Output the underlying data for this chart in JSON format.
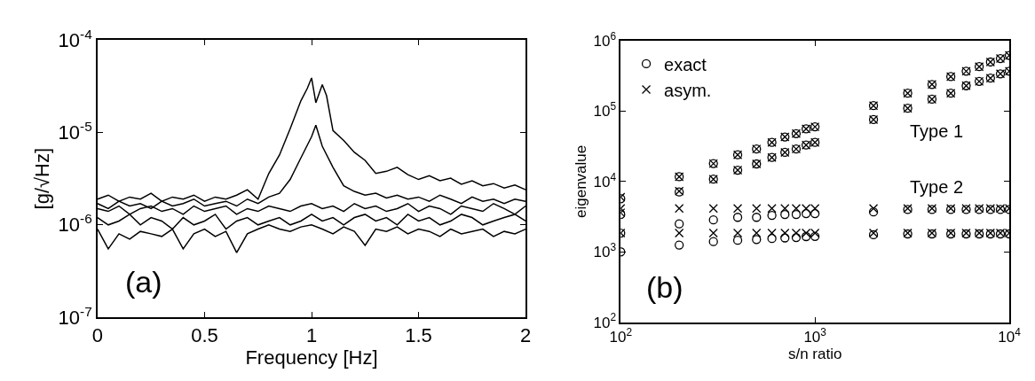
{
  "chart_data": [
    {
      "type": "line",
      "xlabel": "Frequency [Hz]",
      "ylabel": "[g/√Hz]",
      "log": "y",
      "legend": false,
      "marker": "none",
      "line_style": "solid",
      "annotations": [
        "(a)"
      ],
      "xlim": [
        0,
        2
      ],
      "xticks": [
        0,
        0.5,
        1,
        1.5,
        2
      ],
      "ylim": [
        1e-07,
        0.0001
      ],
      "yticks": [
        {
          "value": 1e-07,
          "label": "10$^{-7}$"
        },
        {
          "value": 1e-06,
          "label": "10$^{-6}$"
        },
        {
          "value": 1e-05,
          "label": "10$^{-5}$"
        },
        {
          "value": 0.0001,
          "label": "10$^{-4}$"
        }
      ],
      "x": [
        0,
        0.05,
        0.1,
        0.15,
        0.2,
        0.25,
        0.3,
        0.35,
        0.4,
        0.45,
        0.5,
        0.55,
        0.6,
        0.65,
        0.7,
        0.75,
        0.8,
        0.85,
        0.9,
        0.95,
        1.0,
        1.05,
        1.1,
        1.15,
        1.2,
        1.25,
        1.3,
        1.35,
        1.4,
        1.45,
        1.5,
        1.55,
        1.6,
        1.65,
        1.7,
        1.75,
        1.8,
        1.85,
        1.9,
        1.95,
        2.0
      ],
      "series": [
        {
          "color": "#000000",
          "x": [
            0,
            0.05,
            0.1,
            0.15,
            0.2,
            0.25,
            0.3,
            0.35,
            0.4,
            0.45,
            0.5,
            0.55,
            0.6,
            0.65,
            0.7,
            0.75,
            0.8,
            0.85,
            0.9,
            0.95,
            0.98,
            1.0,
            1.02,
            1.05,
            1.07,
            1.1,
            1.15,
            1.2,
            1.25,
            1.3,
            1.35,
            1.4,
            1.45,
            1.5,
            1.55,
            1.6,
            1.65,
            1.7,
            1.75,
            1.8,
            1.85,
            1.9,
            1.95,
            2.0
          ],
          "values": [
            1.9e-06,
            2.1e-06,
            1.8e-06,
            2e-06,
            1.9e-06,
            2.2e-06,
            1.8e-06,
            2e-06,
            1.9e-06,
            2.1e-06,
            1.8e-06,
            2e-06,
            1.9e-06,
            2.1e-06,
            2.4e-06,
            1.9e-06,
            3.6e-06,
            5.7e-06,
            1.1e-05,
            2.2e-05,
            3e-05,
            3.9e-05,
            2.1e-05,
            3.3e-05,
            2.5e-05,
            1.05e-05,
            8.2e-06,
            6.1e-06,
            5e-06,
            3.6e-06,
            3.8e-06,
            4.2e-06,
            3.5e-06,
            3.1e-06,
            3.4e-06,
            3e-06,
            3.2e-06,
            2.75e-06,
            3e-06,
            2.65e-06,
            2.8e-06,
            2.5e-06,
            2.7e-06,
            2.4e-06
          ]
        },
        {
          "color": "#000000",
          "x": [
            0,
            0.05,
            0.1,
            0.15,
            0.2,
            0.25,
            0.3,
            0.35,
            0.4,
            0.45,
            0.5,
            0.55,
            0.6,
            0.65,
            0.7,
            0.75,
            0.8,
            0.85,
            0.9,
            0.95,
            1.0,
            1.02,
            1.05,
            1.1,
            1.15,
            1.2,
            1.25,
            1.3,
            1.35,
            1.4,
            1.45,
            1.5,
            1.55,
            1.6,
            1.65,
            1.7,
            1.75,
            1.8,
            1.85,
            1.9,
            1.95,
            2.0
          ],
          "values": [
            1.7e-06,
            1.5e-06,
            1.8e-06,
            1.6e-06,
            1.7e-06,
            1.5e-06,
            1.8e-06,
            1.6e-06,
            1.7e-06,
            1.9e-06,
            1.6e-06,
            1.7e-06,
            1.8e-06,
            1.6e-06,
            1.9e-06,
            1.7e-06,
            2e-06,
            2.2e-06,
            3.1e-06,
            5.3e-06,
            9e-06,
            1.2e-05,
            7.1e-06,
            4.2e-06,
            2.65e-06,
            2.3e-06,
            2.1e-06,
            2.2e-06,
            1.95e-06,
            2.1e-06,
            1.9e-06,
            2e-06,
            1.8e-06,
            2.1e-06,
            1.9e-06,
            1.7e-06,
            2e-06,
            1.8e-06,
            1.9e-06,
            1.7e-06,
            1.9e-06,
            1.8e-06
          ]
        },
        {
          "color": "#000000",
          "values": [
            1.5e-06,
            1.4e-06,
            1.6e-06,
            1.3e-06,
            1.5e-06,
            1.6e-06,
            1.4e-06,
            1.5e-06,
            1.3e-06,
            1.6e-06,
            1.4e-06,
            1.5e-06,
            1.6e-06,
            1.3e-06,
            1.5e-06,
            1.4e-06,
            1.6e-06,
            1.5e-06,
            1.4e-06,
            1.6e-06,
            1.7e-06,
            1.5e-06,
            1.6e-06,
            1.4e-06,
            1.7e-06,
            1.5e-06,
            1.6e-06,
            1.4e-06,
            1.5e-06,
            1.7e-06,
            1.4e-06,
            1.6e-06,
            1.5e-06,
            1.3e-06,
            1.6e-06,
            1.5e-06,
            1.4e-06,
            1.7e-06,
            1.5e-06,
            1.3e-06,
            1.6e-06
          ]
        },
        {
          "color": "#000000",
          "values": [
            1.2e-06,
            1e-06,
            1.1e-06,
            1.3e-06,
            1e-06,
            1.2e-06,
            1.1e-06,
            9e-07,
            1.2e-06,
            1e-06,
            1.1e-06,
            1.3e-06,
            9e-07,
            1.1e-06,
            1.2e-06,
            1e-06,
            1.1e-06,
            1.2e-06,
            1e-06,
            1.1e-06,
            1.3e-06,
            1.1e-06,
            1.2e-06,
            1e-06,
            1.2e-06,
            1.3e-06,
            1.1e-06,
            1.2e-06,
            1e-06,
            1.3e-06,
            1.1e-06,
            1.2e-06,
            1e-06,
            1.1e-06,
            1.3e-06,
            1.2e-06,
            1e-06,
            1.1e-06,
            1.2e-06,
            1.3e-06,
            1.1e-06
          ]
        },
        {
          "color": "#000000",
          "values": [
            9e-07,
            5.5e-07,
            8e-07,
            7e-07,
            8.5e-07,
            8e-07,
            7.5e-07,
            9e-07,
            5.5e-07,
            8e-07,
            9e-07,
            7.5e-07,
            8.5e-07,
            5e-07,
            8e-07,
            9e-07,
            1e-06,
            9e-07,
            8.5e-07,
            9.5e-07,
            1e-06,
            9e-07,
            8e-07,
            9.5e-07,
            8.5e-07,
            6e-07,
            9e-07,
            8.5e-07,
            9.5e-07,
            8e-07,
            9e-07,
            8.5e-07,
            7.5e-07,
            9e-07,
            8e-07,
            8.5e-07,
            9e-07,
            7.5e-07,
            8.5e-07,
            8e-07,
            9e-07
          ]
        }
      ]
    },
    {
      "type": "scatter",
      "xlabel": "s/n ratio",
      "ylabel": "eigenvalue",
      "log": "xy",
      "legend": "top left",
      "annotations": [
        "(b)",
        "Type 1",
        "Type 2"
      ],
      "xlim": [
        100,
        10000
      ],
      "xticks": [
        {
          "value": 100,
          "label": "10$^{2}$"
        },
        {
          "value": 1000,
          "label": "10$^{3}$"
        },
        {
          "value": 10000,
          "label": "10$^{4}$"
        }
      ],
      "ylim": [
        100,
        1000000
      ],
      "yticks": [
        {
          "value": 100,
          "label": "10$^{2}$"
        },
        {
          "value": 1000,
          "label": "10$^{3}$"
        },
        {
          "value": 10000,
          "label": "10$^{4}$"
        },
        {
          "value": 100000,
          "label": "10$^{5}$"
        },
        {
          "value": 1000000,
          "label": "10$^{6}$"
        }
      ],
      "series": [
        {
          "name": "exact",
          "color": "#000000",
          "marker": "circle",
          "x": [
            100,
            100,
            100,
            100,
            200,
            200,
            200,
            200,
            300,
            300,
            300,
            300,
            400,
            400,
            400,
            400,
            500,
            500,
            500,
            500,
            600,
            600,
            600,
            600,
            700,
            700,
            700,
            700,
            800,
            800,
            800,
            800,
            900,
            900,
            900,
            900,
            1000,
            1000,
            1000,
            1000,
            2000,
            2000,
            2000,
            2000,
            3000,
            3000,
            3000,
            3000,
            4000,
            4000,
            4000,
            4000,
            5000,
            5000,
            5000,
            5000,
            6000,
            6000,
            6000,
            6000,
            7000,
            7000,
            7000,
            7000,
            8000,
            8000,
            8000,
            8000,
            9000,
            9000,
            9000,
            9000,
            10000,
            10000,
            10000,
            10000
          ],
          "values": [
            5700,
            3400,
            1850,
            1000,
            11700,
            7100,
            2500,
            1250,
            18000,
            10800,
            2850,
            1400,
            24000,
            14500,
            3100,
            1460,
            29000,
            17800,
            3100,
            1500,
            36000,
            22000,
            3300,
            1550,
            43000,
            26000,
            3400,
            1580,
            48000,
            29000,
            3400,
            1600,
            56000,
            33000,
            3500,
            1650,
            60000,
            36000,
            3500,
            1660,
            120000,
            76000,
            3700,
            1750,
            180000,
            110000,
            4000,
            1800,
            240000,
            148000,
            4000,
            1800,
            310000,
            180000,
            4000,
            1800,
            370000,
            230000,
            4000,
            1800,
            430000,
            265000,
            4000,
            1800,
            500000,
            295000,
            4000,
            1800,
            560000,
            340000,
            4000,
            1800,
            620000,
            370000,
            4000,
            1800
          ]
        },
        {
          "name": "asym.",
          "color": "#000000",
          "marker": "cross",
          "x": [
            100,
            100,
            100,
            100,
            200,
            200,
            200,
            200,
            300,
            300,
            300,
            300,
            400,
            400,
            400,
            400,
            500,
            500,
            500,
            500,
            600,
            600,
            600,
            600,
            700,
            700,
            700,
            700,
            800,
            800,
            800,
            800,
            900,
            900,
            900,
            900,
            1000,
            1000,
            1000,
            1000,
            2000,
            2000,
            2000,
            2000,
            3000,
            3000,
            3000,
            3000,
            4000,
            4000,
            4000,
            4000,
            5000,
            5000,
            5000,
            5000,
            6000,
            6000,
            6000,
            6000,
            7000,
            7000,
            7000,
            7000,
            8000,
            8000,
            8000,
            8000,
            9000,
            9000,
            9000,
            9000,
            10000,
            10000,
            10000,
            10000
          ],
          "values": [
            6000,
            4150,
            3600,
            1850,
            11700,
            7300,
            4150,
            1850,
            18000,
            10800,
            4150,
            1850,
            24000,
            14500,
            4150,
            1850,
            29000,
            17800,
            4150,
            1850,
            36000,
            22000,
            4150,
            1850,
            43000,
            26000,
            4150,
            1850,
            48000,
            29000,
            4150,
            1850,
            56000,
            33000,
            4150,
            1850,
            60000,
            36000,
            4150,
            1850,
            120000,
            76000,
            4150,
            1850,
            180000,
            110000,
            4150,
            1850,
            240000,
            148000,
            4150,
            1850,
            310000,
            180000,
            4150,
            1850,
            370000,
            230000,
            4150,
            1850,
            430000,
            265000,
            4150,
            1850,
            500000,
            295000,
            4150,
            1850,
            560000,
            340000,
            4150,
            1850,
            620000,
            370000,
            4150,
            1850
          ]
        }
      ]
    }
  ]
}
